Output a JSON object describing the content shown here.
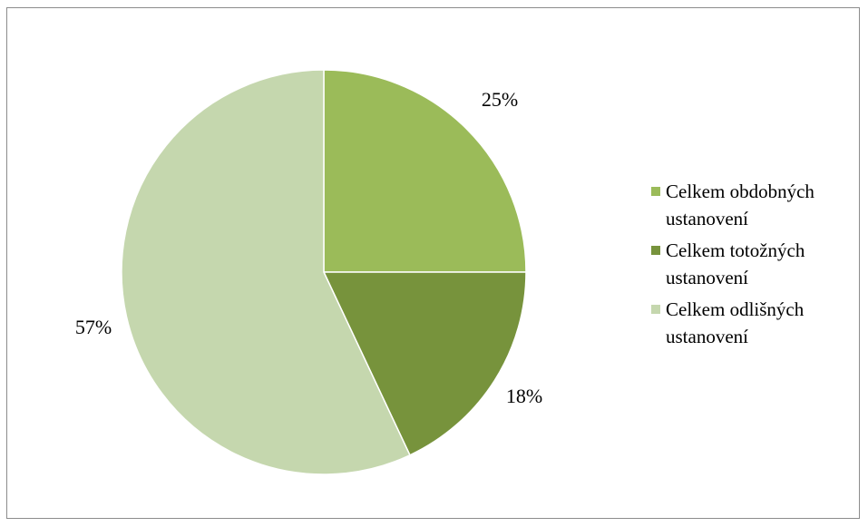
{
  "chart_data": {
    "type": "pie",
    "title": "",
    "categories": [
      "Celkem obdobných ustanovení",
      "Celkem totožných ustanovení",
      "Celkem odlišných ustanovení"
    ],
    "values": [
      25,
      18,
      57
    ],
    "labels": [
      "25%",
      "18%",
      "57%"
    ],
    "colors": [
      "#9bbb59",
      "#77933c",
      "#c5d7ae"
    ],
    "legend_position": "right"
  }
}
